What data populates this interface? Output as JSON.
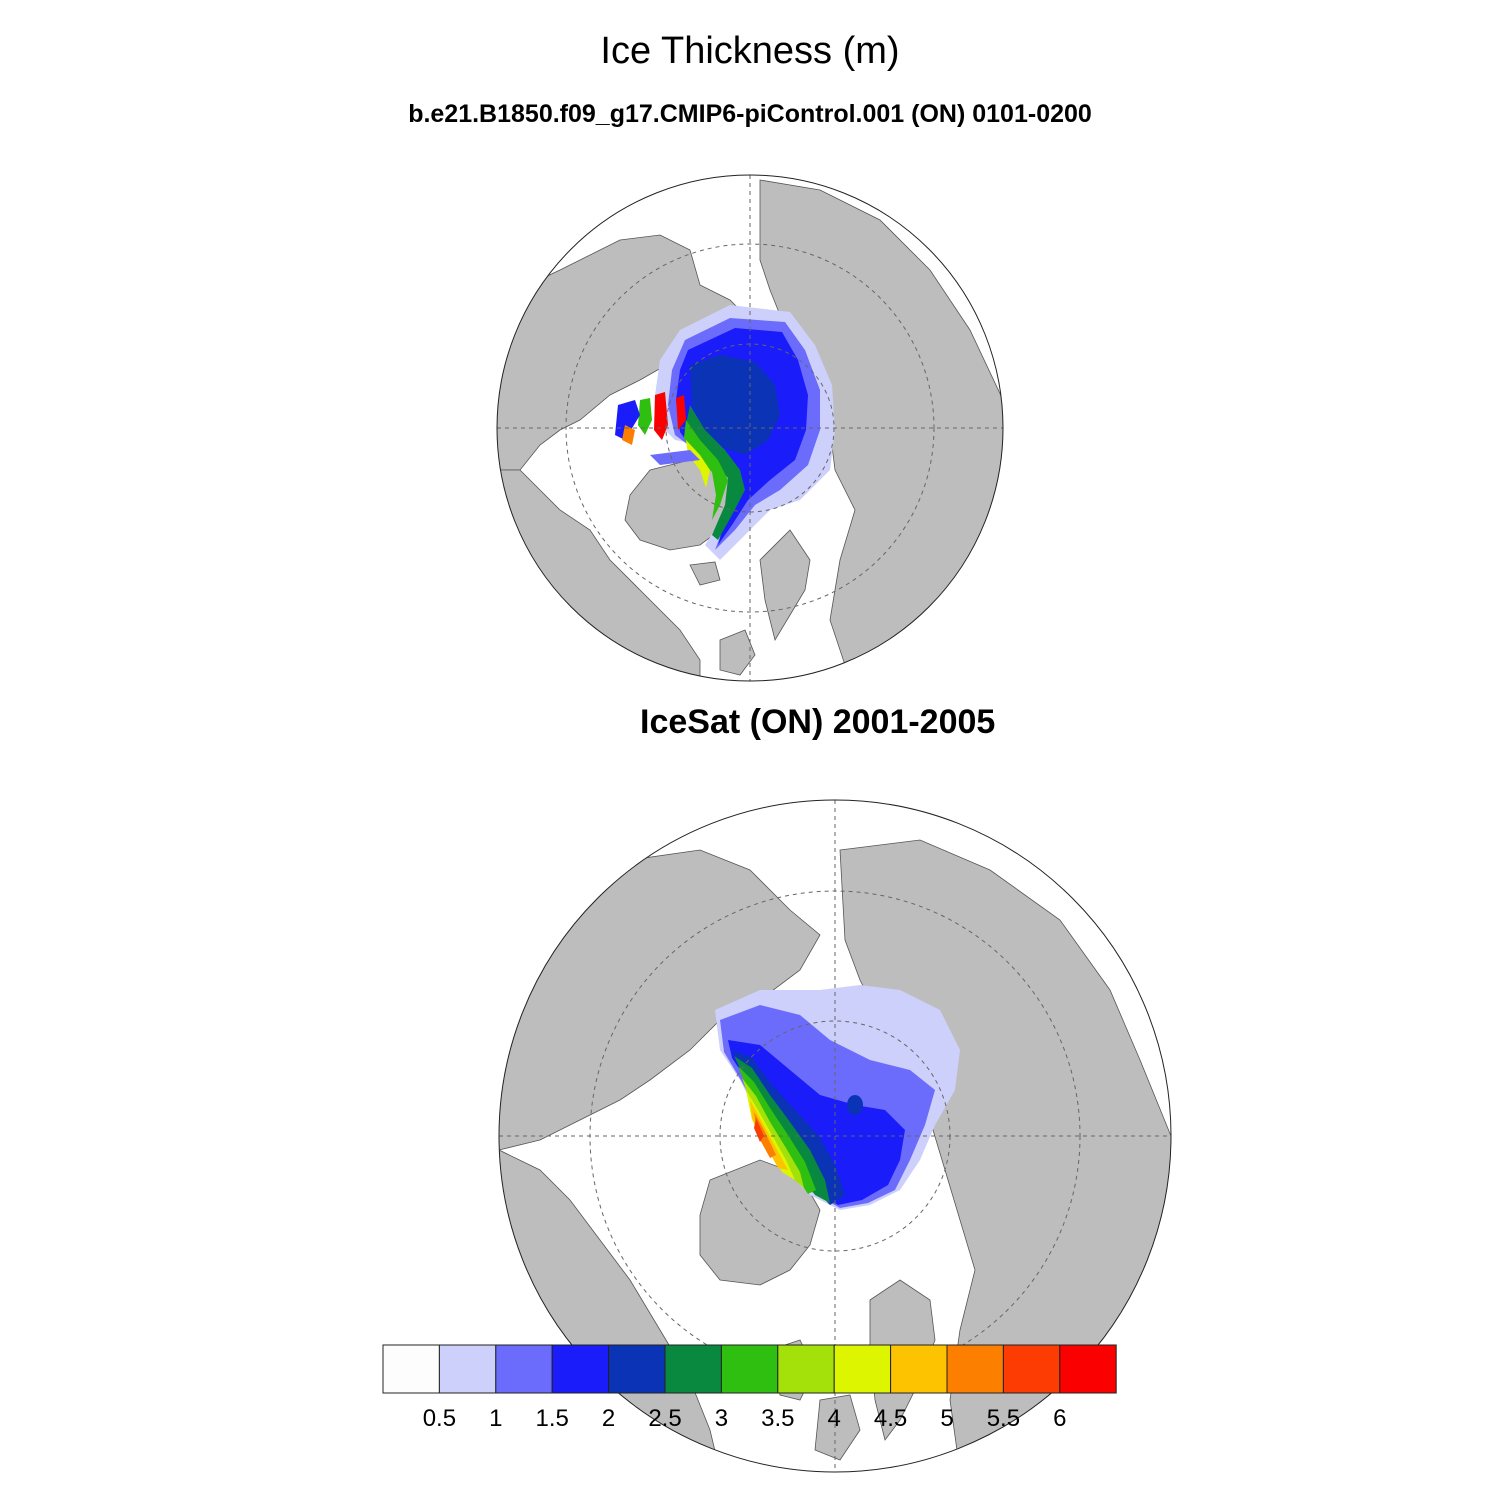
{
  "title": "Ice Thickness (m)",
  "panels": [
    {
      "label": "b.e21.B1850.f09_g17.CMIP6-piControl.001 (ON) 0101-0200"
    },
    {
      "label": "IceSat (ON) 2001-2005"
    }
  ],
  "colorbar": {
    "colors": [
      "#fdfdfd",
      "#cdd0fb",
      "#6b6cfb",
      "#1a1cfa",
      "#0a33b5",
      "#08893f",
      "#2fbf10",
      "#a4e10a",
      "#def500",
      "#fdc300",
      "#fc7f00",
      "#fc3c02",
      "#fa0000"
    ],
    "labels": [
      "0.5",
      "1",
      "1.5",
      "2",
      "2.5",
      "3",
      "3.5",
      "4",
      "4.5",
      "5",
      "5.5",
      "6"
    ]
  },
  "map_colors": {
    "land": "#bdbdbd",
    "ocean": "#ffffff"
  }
}
